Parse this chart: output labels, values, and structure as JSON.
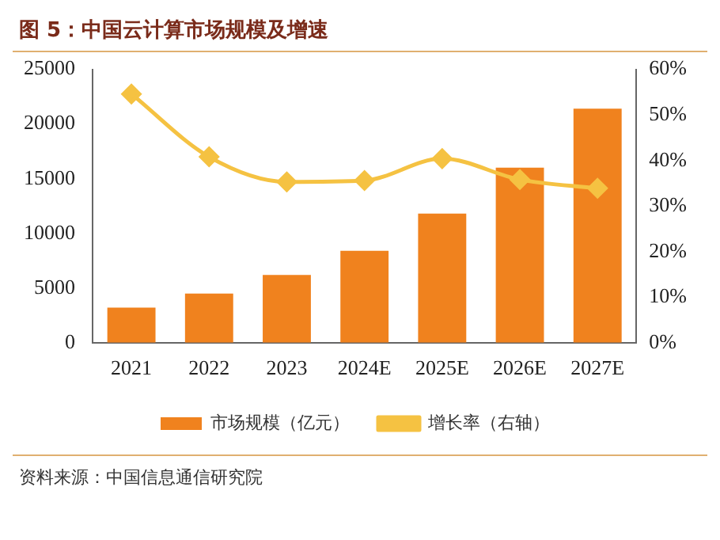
{
  "chart_data": {
    "type": "bar",
    "title": "图 5：中国云计算市场规模及增速",
    "categories": [
      "2021",
      "2022",
      "2023",
      "2024E",
      "2025E",
      "2026E",
      "2027E"
    ],
    "series": [
      {
        "name": "市场规模（亿元）",
        "color": "#f0821e",
        "values": [
          3200,
          4500,
          6200,
          8400,
          11800,
          16000,
          21400
        ]
      },
      {
        "name": "增长率（右轴）",
        "type": "line",
        "axis": "y2",
        "color": "#f5c242",
        "marker": "diamond",
        "values": [
          54.6,
          40.8,
          35.3,
          35.6,
          40.4,
          35.8,
          33.9
        ]
      }
    ],
    "ylim": [
      0,
      25000
    ],
    "yticks": [
      0,
      5000,
      10000,
      15000,
      20000,
      25000
    ],
    "y2lim": [
      0,
      60
    ],
    "y2ticks": [
      {
        "value": 0,
        "label": "0%"
      },
      {
        "value": 10,
        "label": "10%"
      },
      {
        "value": 20,
        "label": "20%"
      },
      {
        "value": 30,
        "label": "30%"
      },
      {
        "value": 40,
        "label": "40%"
      },
      {
        "value": 50,
        "label": "50%"
      },
      {
        "value": 60,
        "label": "60%"
      }
    ],
    "legend": "bottom",
    "grid": false,
    "annotations": [
      "资料来源：中国信息通信研究院"
    ]
  }
}
